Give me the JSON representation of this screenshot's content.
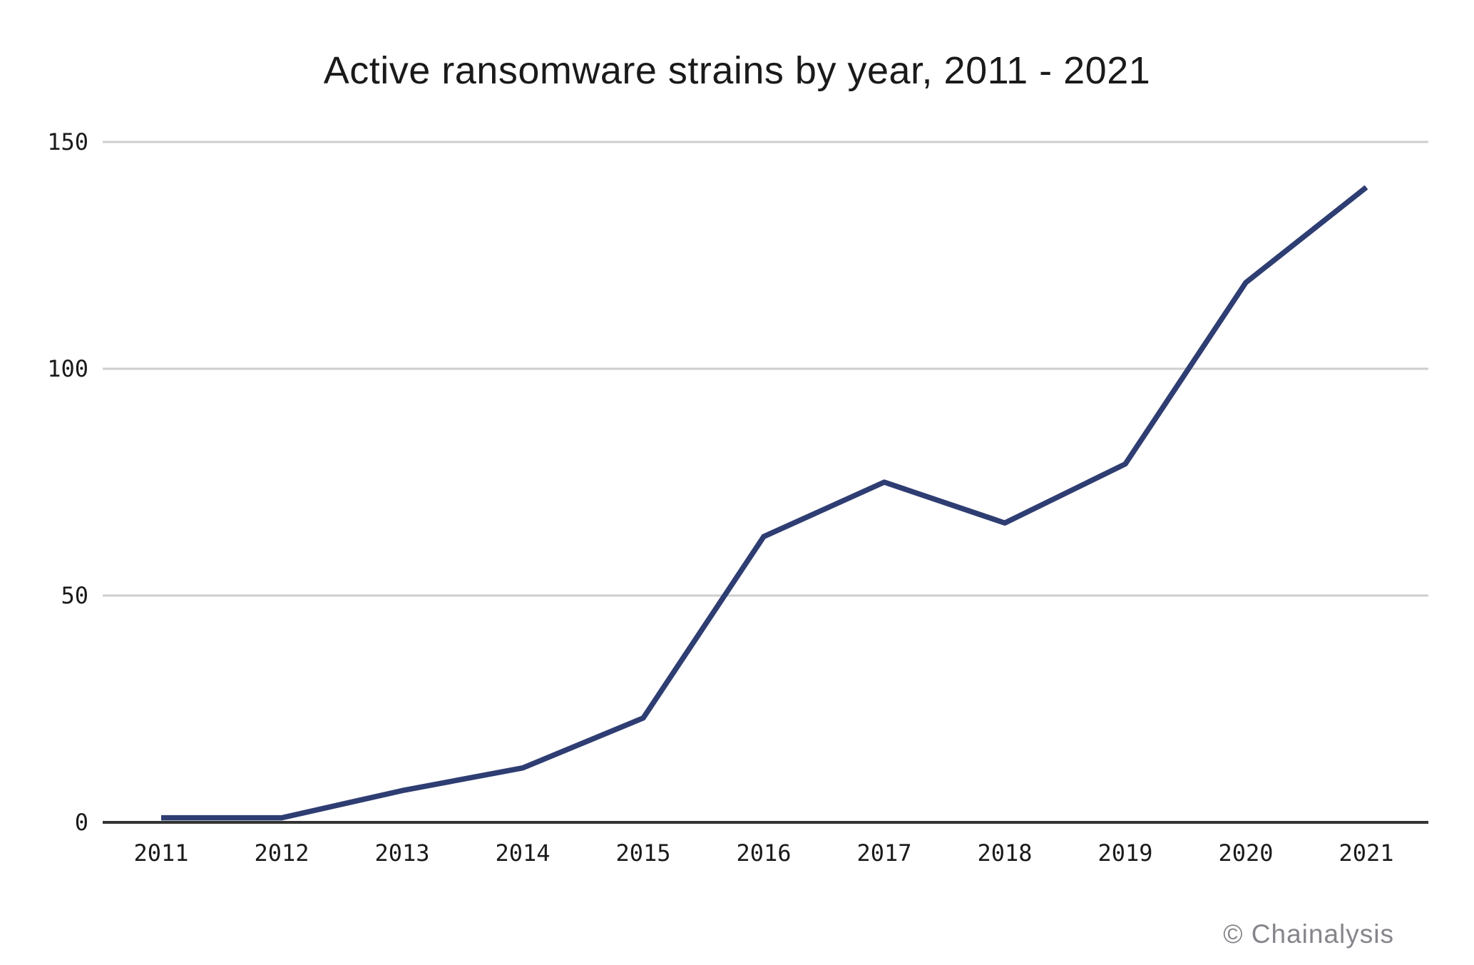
{
  "chart_data": {
    "type": "line",
    "title": "Active ransomware strains by year, 2011 - 2021",
    "categories": [
      "2011",
      "2012",
      "2013",
      "2014",
      "2015",
      "2016",
      "2017",
      "2018",
      "2019",
      "2020",
      "2021"
    ],
    "values": [
      1,
      1,
      7,
      12,
      23,
      63,
      75,
      66,
      79,
      119,
      140
    ],
    "series_name": "Active ransomware strains",
    "xlabel": "",
    "ylabel": "",
    "ylim": [
      0,
      150
    ],
    "yticks": [
      0,
      50,
      100,
      150
    ],
    "grid": "horizontal-only",
    "legend": "none"
  },
  "footer": {
    "credit": "© Chainalysis"
  },
  "colors": {
    "line": "#2e3d72",
    "gridline": "#cecece",
    "axis": "#333333",
    "tick_text": "#1a1a1a",
    "title_text": "#1a1a1a",
    "watermark": "#85858b",
    "background": "#ffffff"
  }
}
